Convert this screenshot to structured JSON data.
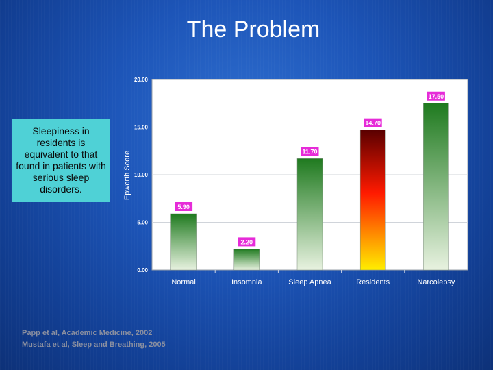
{
  "slide": {
    "title": "The Problem",
    "callout": "Sleepiness in residents is equivalent to that found in patients with serious sleep disorders.",
    "references": [
      "Papp et al, Academic Medicine, 2002",
      "Mustafa et al, Sleep and Breathing, 2005"
    ]
  },
  "chart_data": {
    "type": "bar",
    "title": "",
    "xlabel": "",
    "ylabel": "Epworth Score",
    "categories": [
      "Normal",
      "Insomnia",
      "Sleep Apnea",
      "Residents",
      "Narcolepsy"
    ],
    "values": [
      5.9,
      2.2,
      11.7,
      14.7,
      17.5
    ],
    "data_labels": [
      "5.90",
      "2.20",
      "11.70",
      "14.70",
      "17.50"
    ],
    "ylim": [
      0,
      20
    ],
    "yticks": [
      "0.00",
      "5.00",
      "10.00",
      "15.00",
      "20.00"
    ],
    "grid": true,
    "legend": "none",
    "colors": {
      "green_top": "#1f7a1f",
      "green_bottom": "#e8f2e0",
      "residents_top": "#5a0000",
      "residents_mid": "#ff1a00",
      "residents_bottom": "#ffee00",
      "label_bg": "#e62bd8",
      "plot_bg": "#ffffff"
    }
  }
}
